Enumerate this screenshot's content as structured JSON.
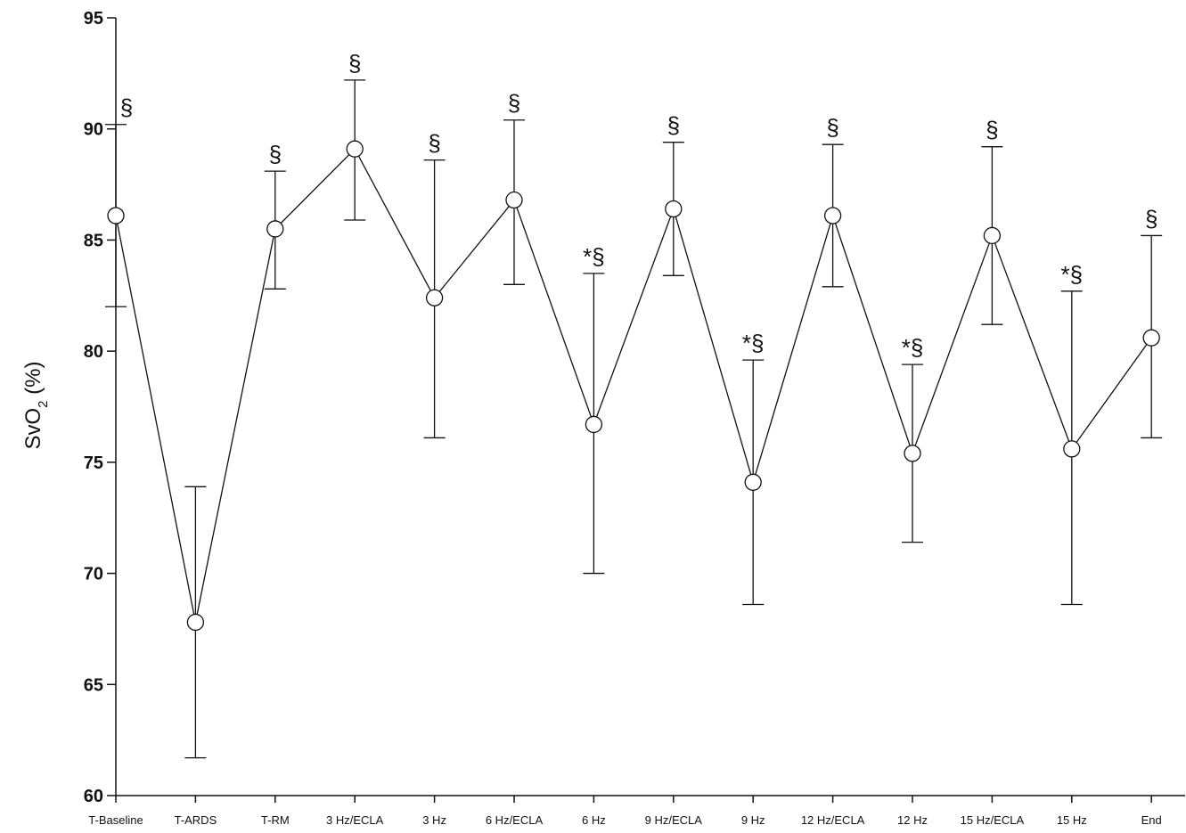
{
  "chart_data": {
    "type": "line",
    "ylabel": "SvO",
    "ylabel_sub": "2",
    "ylabel_unit": " (%)",
    "ylim": [
      60,
      95
    ],
    "yticks": [
      "60",
      "65",
      "70",
      "75",
      "80",
      "85",
      "90",
      "95"
    ],
    "grid": false,
    "categories": [
      "T-Baseline",
      "T-ARDS",
      "T-RM",
      "3 Hz/ECLA",
      "3 Hz",
      "6 Hz/ECLA",
      "6 Hz",
      "9 Hz/ECLA",
      "9 Hz",
      "12 Hz/ECLA",
      "12 Hz",
      "15 Hz/ECLA",
      "15 Hz",
      "End"
    ],
    "series": [
      {
        "values": [
          86.1,
          67.8,
          85.5,
          89.1,
          82.4,
          86.8,
          76.7,
          86.4,
          74.1,
          86.1,
          75.4,
          85.2,
          75.6,
          80.6
        ],
        "err_upper": [
          90.2,
          73.9,
          88.1,
          92.2,
          88.6,
          90.4,
          83.5,
          89.4,
          79.6,
          89.3,
          79.4,
          89.2,
          82.7,
          85.2
        ],
        "err_lower": [
          82.0,
          61.7,
          82.8,
          85.9,
          76.1,
          83.0,
          70.0,
          83.4,
          68.6,
          82.9,
          71.4,
          81.2,
          68.6,
          76.1
        ]
      }
    ],
    "annotations": [
      "§",
      "",
      "§",
      "§",
      "§",
      "§",
      "*§",
      "§",
      "*§",
      "§",
      "*§",
      "§",
      "*§",
      "§"
    ]
  }
}
